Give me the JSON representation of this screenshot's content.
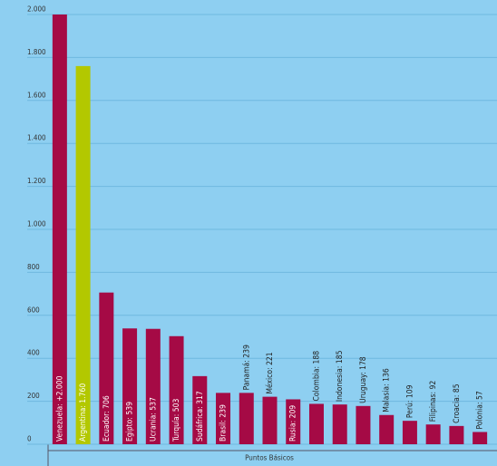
{
  "chart_data": {
    "type": "bar",
    "x_label": "Puntos Básicos",
    "categories": [
      "Venezuela: +2.000",
      "Argentina: 1.760",
      "Ecuador: 706",
      "Egipto: 539",
      "Ucrania: 537",
      "Turquía: 503",
      "Sudáfrica: 317",
      "Brasil: 239",
      "Panamá: 239",
      "México: 221",
      "Rusia: 209",
      "Colombia: 188",
      "Indonesia: 185",
      "Uruguay: 178",
      "Malasia: 136",
      "Perú: 109",
      "Filipinas: 92",
      "Croacia: 85",
      "Polonia: 57"
    ],
    "values": [
      2000,
      1760,
      706,
      539,
      537,
      503,
      317,
      239,
      239,
      221,
      209,
      188,
      185,
      178,
      136,
      109,
      92,
      85,
      57
    ],
    "colors": [
      "#a50a45",
      "#b3c800",
      "#a50a45",
      "#a50a45",
      "#a50a45",
      "#a50a45",
      "#a50a45",
      "#a50a45",
      "#a50a45",
      "#a50a45",
      "#a50a45",
      "#a50a45",
      "#a50a45",
      "#a50a45",
      "#a50a45",
      "#a50a45",
      "#a50a45",
      "#a50a45",
      "#a50a45"
    ],
    "ylim": [
      0,
      2000
    ],
    "yticks": [
      0,
      200,
      400,
      600,
      800,
      {
        "value": 1000,
        "label": "1.000"
      },
      {
        "value": 1200,
        "label": "1.200"
      },
      {
        "value": 1400,
        "label": "1.400"
      },
      {
        "value": 1600,
        "label": "1.600"
      },
      {
        "value": 1800,
        "label": "1.800"
      },
      {
        "value": 2000,
        "label": "2.000"
      }
    ],
    "grid": true
  }
}
